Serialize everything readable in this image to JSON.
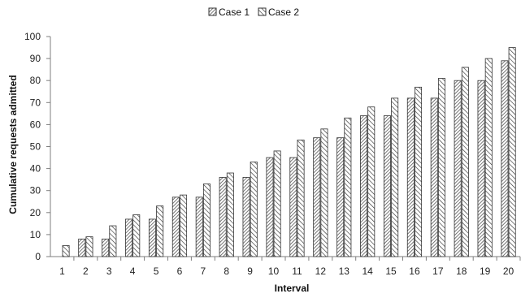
{
  "chart_data": {
    "type": "bar",
    "categories": [
      "1",
      "2",
      "3",
      "4",
      "5",
      "6",
      "7",
      "8",
      "9",
      "10",
      "11",
      "12",
      "13",
      "14",
      "15",
      "16",
      "17",
      "18",
      "19",
      "20"
    ],
    "series": [
      {
        "name": "Case 1",
        "values": [
          0,
          8,
          8,
          17,
          17,
          27,
          27,
          36,
          36,
          45,
          45,
          54,
          54,
          64,
          64,
          72,
          72,
          80,
          80,
          89
        ]
      },
      {
        "name": "Case 2",
        "values": [
          5,
          9,
          14,
          19,
          23,
          28,
          33,
          38,
          43,
          48,
          53,
          58,
          63,
          68,
          72,
          77,
          81,
          86,
          90,
          95
        ]
      }
    ],
    "xlabel": "Interval",
    "ylabel": "Cumulative requests admitted",
    "ylim": [
      0,
      100
    ],
    "yticks": [
      "0",
      "10",
      "20",
      "30",
      "40",
      "50",
      "60",
      "70",
      "80",
      "90",
      "100"
    ],
    "grid": false,
    "legend_position": "top-center",
    "colors": {
      "axis": "#7f7f7f",
      "bar_outline": "#333333",
      "hatch_case1": "#555555",
      "hatch_case2": "#333333"
    }
  }
}
